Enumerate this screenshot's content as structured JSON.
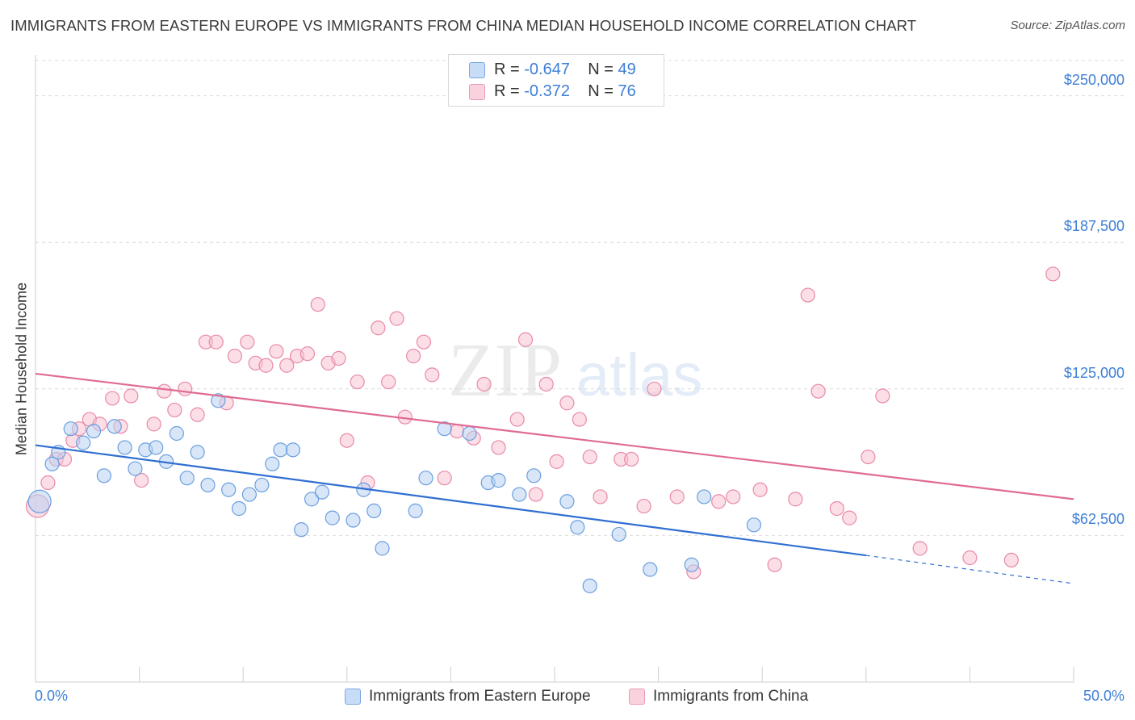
{
  "header": {
    "title": "IMMIGRANTS FROM EASTERN EUROPE VS IMMIGRANTS FROM CHINA MEDIAN HOUSEHOLD INCOME CORRELATION CHART",
    "source": "Source: ZipAtlas.com"
  },
  "legend": {
    "rows": [
      {
        "r_label": "R = ",
        "r_value": "-0.647",
        "n_label": "N = ",
        "n_value": "49"
      },
      {
        "r_label": "R = ",
        "r_value": "-0.372",
        "n_label": "N = ",
        "n_value": "76"
      }
    ]
  },
  "watermark": {
    "zip": "ZIP",
    "atlas": "atlas"
  },
  "colors": {
    "blue_fill": "#b8d1f3",
    "blue_stroke": "#6a9fe0",
    "blue_line": "#2f6fd1",
    "pink_fill": "#f7c3d2",
    "pink_stroke": "#e88aa7",
    "pink_line": "#e06b93",
    "axis_text": "#3d7fd6",
    "grid": "#dcdcdc"
  },
  "chart_data": {
    "type": "scatter",
    "title": "IMMIGRANTS FROM EASTERN EUROPE VS IMMIGRANTS FROM CHINA MEDIAN HOUSEHOLD INCOME CORRELATION CHART",
    "xlabel": "",
    "ylabel": "Median Household Income",
    "xlim": [
      0,
      50
    ],
    "ylim": [
      0,
      265000
    ],
    "x_tick_labels": [
      "0.0%",
      "50.0%"
    ],
    "y_ticks": [
      62500,
      125000,
      187500,
      250000
    ],
    "y_tick_labels": [
      "$62,500",
      "$125,000",
      "$187,500",
      "$250,000"
    ],
    "grid": true,
    "legend_position": "bottom",
    "series": [
      {
        "name": "Immigrants from Eastern Europe",
        "color": "#b8d1f3",
        "points": [
          [
            0.2,
            77000
          ],
          [
            0.8,
            93000
          ],
          [
            1.1,
            98000
          ],
          [
            1.7,
            108000
          ],
          [
            2.3,
            102000
          ],
          [
            2.8,
            107000
          ],
          [
            3.3,
            88000
          ],
          [
            3.8,
            109000
          ],
          [
            4.3,
            100000
          ],
          [
            4.8,
            91000
          ],
          [
            5.3,
            99000
          ],
          [
            5.8,
            100000
          ],
          [
            6.3,
            94000
          ],
          [
            6.8,
            106000
          ],
          [
            7.3,
            87000
          ],
          [
            7.8,
            98000
          ],
          [
            8.3,
            84000
          ],
          [
            8.8,
            120000
          ],
          [
            9.3,
            82000
          ],
          [
            9.8,
            74000
          ],
          [
            10.3,
            80000
          ],
          [
            10.9,
            84000
          ],
          [
            11.4,
            93000
          ],
          [
            11.8,
            99000
          ],
          [
            12.4,
            99000
          ],
          [
            12.8,
            65000
          ],
          [
            13.3,
            78000
          ],
          [
            13.8,
            81000
          ],
          [
            14.3,
            70000
          ],
          [
            15.3,
            69000
          ],
          [
            15.8,
            82000
          ],
          [
            16.3,
            73000
          ],
          [
            16.7,
            57000
          ],
          [
            18.3,
            73000
          ],
          [
            18.8,
            87000
          ],
          [
            19.7,
            108000
          ],
          [
            20.9,
            106000
          ],
          [
            21.8,
            85000
          ],
          [
            22.3,
            86000
          ],
          [
            23.3,
            80000
          ],
          [
            24.0,
            88000
          ],
          [
            25.6,
            77000
          ],
          [
            26.1,
            66000
          ],
          [
            26.7,
            41000
          ],
          [
            28.1,
            63000
          ],
          [
            29.6,
            48000
          ],
          [
            31.6,
            50000
          ],
          [
            32.2,
            79000
          ],
          [
            34.6,
            67000
          ]
        ],
        "trend": {
          "x": [
            0,
            40
          ],
          "y": [
            101000,
            54000
          ]
        },
        "trend_extension": {
          "x": [
            40,
            50
          ],
          "y": [
            54000,
            42000
          ]
        }
      },
      {
        "name": "Immigrants from China",
        "color": "#f7c3d2",
        "points": [
          [
            0.1,
            75000
          ],
          [
            0.6,
            85000
          ],
          [
            1.0,
            95000
          ],
          [
            1.4,
            95000
          ],
          [
            1.8,
            103000
          ],
          [
            2.1,
            108000
          ],
          [
            2.6,
            112000
          ],
          [
            3.1,
            110000
          ],
          [
            3.7,
            121000
          ],
          [
            4.1,
            109000
          ],
          [
            4.6,
            122000
          ],
          [
            5.1,
            86000
          ],
          [
            5.7,
            110000
          ],
          [
            6.2,
            124000
          ],
          [
            6.7,
            116000
          ],
          [
            7.2,
            125000
          ],
          [
            7.8,
            114000
          ],
          [
            8.2,
            145000
          ],
          [
            8.7,
            145000
          ],
          [
            9.2,
            119000
          ],
          [
            9.6,
            139000
          ],
          [
            10.2,
            145000
          ],
          [
            10.6,
            136000
          ],
          [
            11.1,
            135000
          ],
          [
            11.6,
            141000
          ],
          [
            12.1,
            135000
          ],
          [
            12.6,
            139000
          ],
          [
            13.1,
            140000
          ],
          [
            13.6,
            161000
          ],
          [
            14.1,
            136000
          ],
          [
            14.6,
            138000
          ],
          [
            15.0,
            103000
          ],
          [
            15.5,
            128000
          ],
          [
            16.0,
            85000
          ],
          [
            16.5,
            151000
          ],
          [
            17.0,
            128000
          ],
          [
            17.4,
            155000
          ],
          [
            17.8,
            113000
          ],
          [
            18.2,
            139000
          ],
          [
            18.7,
            145000
          ],
          [
            19.1,
            131000
          ],
          [
            19.7,
            87000
          ],
          [
            20.3,
            107000
          ],
          [
            21.1,
            104000
          ],
          [
            21.6,
            127000
          ],
          [
            22.3,
            100000
          ],
          [
            23.2,
            112000
          ],
          [
            23.6,
            146000
          ],
          [
            24.1,
            80000
          ],
          [
            24.6,
            127000
          ],
          [
            25.1,
            94000
          ],
          [
            25.6,
            119000
          ],
          [
            26.2,
            112000
          ],
          [
            26.7,
            96000
          ],
          [
            27.2,
            79000
          ],
          [
            28.2,
            95000
          ],
          [
            28.7,
            95000
          ],
          [
            29.3,
            75000
          ],
          [
            29.8,
            125000
          ],
          [
            30.9,
            79000
          ],
          [
            31.7,
            47000
          ],
          [
            32.9,
            77000
          ],
          [
            33.6,
            79000
          ],
          [
            34.9,
            82000
          ],
          [
            35.6,
            50000
          ],
          [
            36.6,
            78000
          ],
          [
            37.2,
            165000
          ],
          [
            37.7,
            124000
          ],
          [
            38.6,
            74000
          ],
          [
            39.2,
            70000
          ],
          [
            40.1,
            96000
          ],
          [
            40.8,
            122000
          ],
          [
            42.6,
            57000
          ],
          [
            45.0,
            53000
          ],
          [
            47.0,
            52000
          ],
          [
            49.0,
            174000
          ]
        ],
        "trend": {
          "x": [
            0,
            50
          ],
          "y": [
            131500,
            78000
          ]
        }
      }
    ]
  },
  "axis": {
    "x_min_label": "0.0%",
    "x_max_label": "50.0%"
  }
}
